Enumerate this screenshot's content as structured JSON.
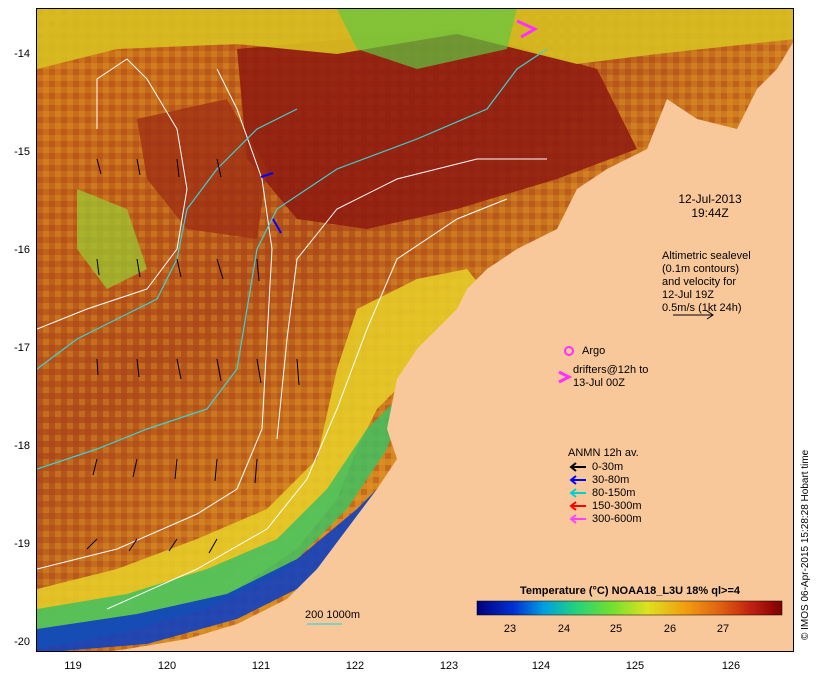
{
  "map": {
    "lon_ticks": [
      "119",
      "120",
      "121",
      "122",
      "123",
      "124",
      "125",
      "126"
    ],
    "lat_ticks": [
      "-14",
      "-15",
      "-16",
      "-17",
      "-18",
      "-19",
      "-20"
    ],
    "land_color": "#f9c89a",
    "contour_color": "#ffffff",
    "isobath_color": "#40d0d0"
  },
  "overlay": {
    "timestamp_line1": "12-Jul-2013",
    "timestamp_line2": "19:44Z",
    "altimetry": [
      "Altimetric sealevel",
      "(0.1m contours)",
      "and velocity for",
      "12-Jul 19Z",
      "0.5m/s (1kt 24h)"
    ],
    "argo_label": "Argo",
    "drifter_label_1": "drifters@12h to",
    "drifter_label_2": "13-Jul 00Z"
  },
  "anmn": {
    "title": "ANMN 12h av.",
    "items": [
      {
        "label": "0-30m",
        "color": "#000000"
      },
      {
        "label": "30-80m",
        "color": "#0000ff"
      },
      {
        "label": "80-150m",
        "color": "#00d0d0"
      },
      {
        "label": "150-300m",
        "color": "#ff0000"
      },
      {
        "label": "300-600m",
        "color": "#ff40ff"
      }
    ]
  },
  "colorbar": {
    "title": "Temperature (°C) NOAA18_L3U 18% ql>=4",
    "ticks": [
      "23",
      "24",
      "25",
      "26",
      "27"
    ]
  },
  "isobath_label": "200  1000m",
  "credit": "© IMOS 06-Apr-2015 15:28:28 Hobart time"
}
